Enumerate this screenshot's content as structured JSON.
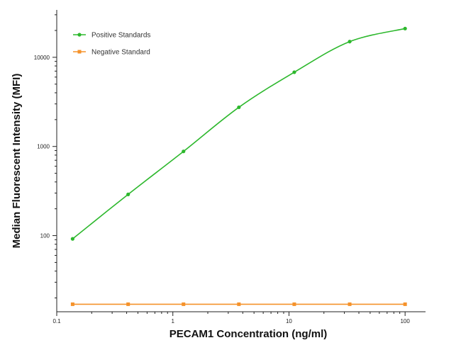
{
  "chart_data": {
    "type": "line",
    "title": "",
    "xlabel": "PECAM1 Concentration (ng/ml)",
    "ylabel": "Median  Fluorescent Intensity  (MFI)",
    "xscale": "log",
    "yscale": "log",
    "xlim": [
      0.1,
      150
    ],
    "ylim": [
      14,
      34000
    ],
    "x_ticks": [
      0.1,
      1,
      10,
      100
    ],
    "x_tick_labels": [
      "0.1",
      "1",
      "10",
      "100"
    ],
    "y_ticks": [
      100,
      1000,
      10000
    ],
    "y_tick_labels": [
      "100",
      "1000",
      "10000"
    ],
    "grid": false,
    "legend_position": "top-left",
    "series": [
      {
        "name": "Positive Standards",
        "color": "#2db82d",
        "marker": "circle",
        "x": [
          0.137,
          0.412,
          1.235,
          3.704,
          11.11,
          33.33,
          100
        ],
        "y": [
          92,
          290,
          880,
          2750,
          6800,
          15000,
          21000
        ]
      },
      {
        "name": "Negative Standard",
        "color": "#f5922a",
        "marker": "square",
        "x": [
          0.137,
          0.412,
          1.235,
          3.704,
          11.11,
          33.33,
          100
        ],
        "y": [
          17,
          17,
          17,
          17,
          17,
          17,
          17
        ]
      }
    ]
  }
}
